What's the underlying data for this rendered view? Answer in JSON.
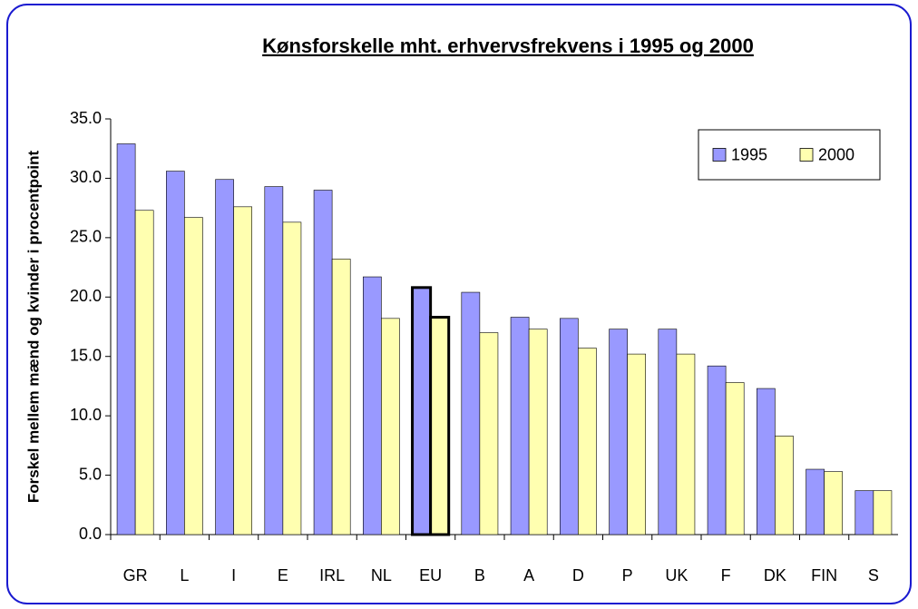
{
  "chart_data": {
    "type": "bar",
    "title": "Kønsforskelle mht. erhvervsfrekvens i 1995 og 2000",
    "y_label": "Forskel mellem mænd og kvinder i procentpoint",
    "categories": [
      "GR",
      "L",
      "I",
      "E",
      "IRL",
      "NL",
      "EU",
      "B",
      "A",
      "D",
      "P",
      "UK",
      "F",
      "DK",
      "FIN",
      "S"
    ],
    "series": [
      {
        "name": "1995",
        "color": "#9999ff",
        "values": [
          32.9,
          30.6,
          29.9,
          29.3,
          29.0,
          21.7,
          20.8,
          20.4,
          18.3,
          18.2,
          17.3,
          17.3,
          14.2,
          12.3,
          5.5,
          3.7
        ]
      },
      {
        "name": "2000",
        "color": "#ffffb0",
        "values": [
          27.3,
          26.7,
          27.6,
          26.3,
          23.2,
          18.2,
          18.3,
          17.0,
          17.3,
          15.7,
          15.2,
          15.2,
          12.8,
          8.3,
          5.3,
          3.7
        ]
      }
    ],
    "highlight_category": "EU",
    "ylim": [
      0,
      35
    ],
    "yticks": [
      {
        "value": 0,
        "label": "0.0"
      },
      {
        "value": 5,
        "label": "5.0"
      },
      {
        "value": 10,
        "label": "10.0"
      },
      {
        "value": 15,
        "label": "15.0"
      },
      {
        "value": 20,
        "label": "20.0"
      },
      {
        "value": 25,
        "label": "25.0"
      },
      {
        "value": 30,
        "label": "30.0"
      },
      {
        "value": 35,
        "label": "35.0"
      }
    ],
    "grid": false,
    "legend": "top-right"
  }
}
